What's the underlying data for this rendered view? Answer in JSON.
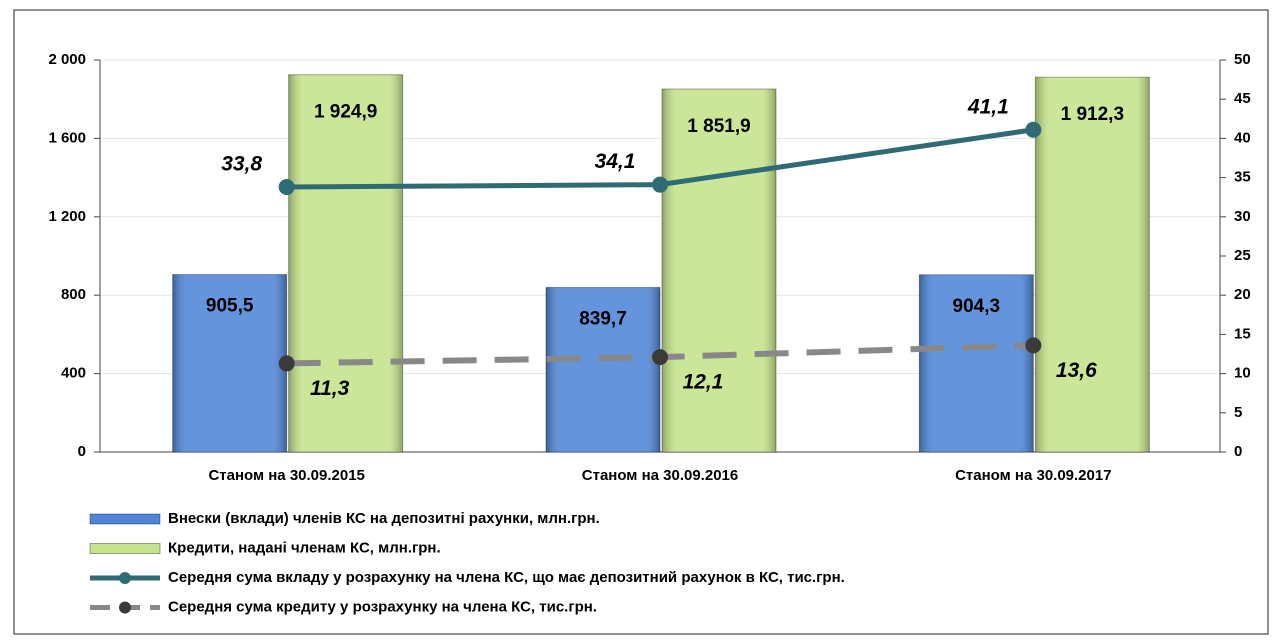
{
  "chart_data": {
    "type": "bar",
    "categories": [
      "Станом на 30.09.2015",
      "Станом на 30.09.2016",
      "Станом на 30.09.2017"
    ],
    "series": [
      {
        "name": "Внески (вклади) членів КС на депозитні рахунки, млн.грн.",
        "type": "bar",
        "color": "#4f86d6",
        "values": [
          905.5,
          839.7,
          904.3
        ],
        "value_labels": [
          "905,5",
          "839,7",
          "904,3"
        ]
      },
      {
        "name": "Кредити, надані членам КС, млн.грн.",
        "type": "bar",
        "color": "#c4e38a",
        "values": [
          1924.9,
          1851.9,
          1912.3
        ],
        "value_labels": [
          "1 924,9",
          "1 851,9",
          "1 912,3"
        ]
      },
      {
        "name": "Середня сума вкладу у розрахунку на члена КС, що має депозитний рахунок в КС, тис.грн.",
        "type": "line",
        "axis": "y2",
        "color": "#2e6b75",
        "marker_color": "#2e6b75",
        "values": [
          33.8,
          34.1,
          41.1
        ],
        "value_labels": [
          "33,8",
          "34,1",
          "41,1"
        ]
      },
      {
        "name": "Середня сума кредиту у розрахунку на члена КС, тис.грн.",
        "type": "line",
        "axis": "y2",
        "dashed": true,
        "color": "#888888",
        "marker_color": "#3a3a3a",
        "values": [
          11.3,
          12.1,
          13.6
        ],
        "value_labels": [
          "11,3",
          "12,1",
          "13,6"
        ]
      }
    ],
    "ylim": [
      0,
      2000
    ],
    "yticks": [
      0,
      400,
      800,
      {
        "value": 1200,
        "label": "1 200"
      },
      {
        "value": 1600,
        "label": "1 600"
      },
      {
        "value": 2000,
        "label": "2 000"
      }
    ],
    "y2lim": [
      0,
      50
    ],
    "y2ticks": [
      0,
      5,
      10,
      15,
      20,
      25,
      30,
      35,
      40,
      45,
      50
    ],
    "grid": true,
    "legend": "bottom"
  }
}
